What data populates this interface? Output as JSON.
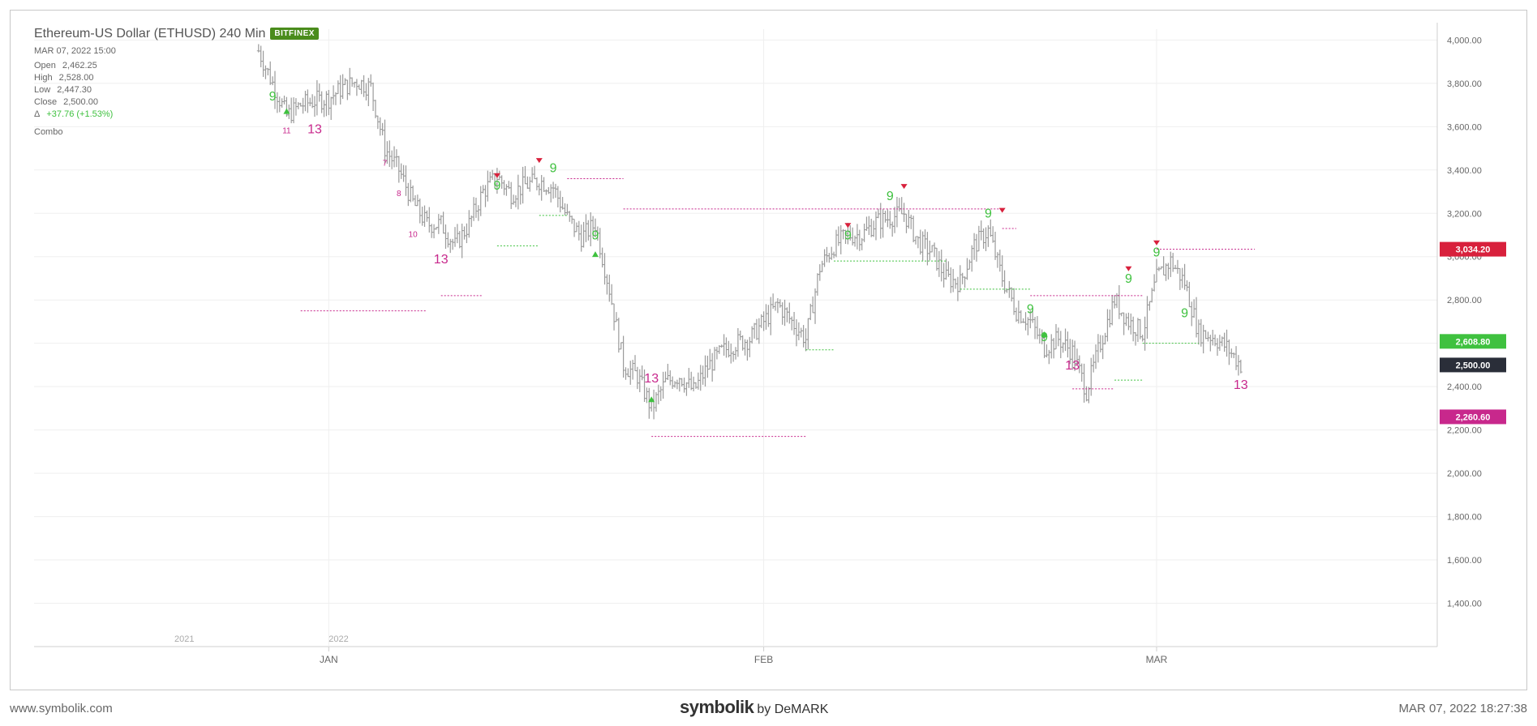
{
  "header": {
    "title": "Ethereum-US Dollar (ETHUSD) 240 Min",
    "exchange": "BITFINEX",
    "datetime": "MAR 07, 2022 15:00",
    "ohlc": [
      {
        "label": "Open",
        "value": "2,462.25"
      },
      {
        "label": "High",
        "value": "2,528.00"
      },
      {
        "label": "Low",
        "value": "2,447.30"
      },
      {
        "label": "Close",
        "value": "2,500.00"
      }
    ],
    "change_symbol": "Δ",
    "change": "+37.76 (+1.53%)",
    "indicator": "Combo"
  },
  "footer": {
    "website": "www.symbolik.com",
    "brand": "symbolik",
    "by": "by DeMARK",
    "timestamp": "MAR 07, 2022 18:27:38"
  },
  "colors": {
    "bar": "#9a9a9a",
    "green": "#3fc13f",
    "magenta": "#c8288c",
    "red": "#d8203c",
    "last": "#2a2e39",
    "grid": "#efefef",
    "axis_text": "#666666"
  },
  "chart_data": {
    "type": "ohlc",
    "symbol": "ETHUSD",
    "interval": "240 Min",
    "ylim": [
      1200,
      4050
    ],
    "y_ticks": [
      4000,
      3800,
      3600,
      3400,
      3200,
      3000,
      2800,
      2600,
      2400,
      2200,
      2000,
      1800,
      1600,
      1400
    ],
    "y_tick_labels": [
      "4,000.00",
      "3,800.00",
      "3,600.00",
      "3,400.00",
      "3,200.00",
      "3,000.00",
      "2,800.00",
      "2,600.00",
      "2,400.00",
      "2,200.00",
      "2,000.00",
      "1,800.00",
      "1,600.00",
      "1,400.00"
    ],
    "x_ticks": [
      {
        "label": "JAN",
        "date": "2022-01-01"
      },
      {
        "label": "FEB",
        "date": "2022-02-01"
      },
      {
        "label": "MAR",
        "date": "2022-03-01"
      }
    ],
    "year_labels": [
      {
        "label": "2021",
        "date": "2021-12-21"
      },
      {
        "label": "2022",
        "date": "2022-01-01"
      }
    ],
    "price_tags": [
      {
        "value": "3,034.20",
        "price": 3034.2,
        "color": "#d8203c"
      },
      {
        "value": "2,608.80",
        "price": 2608.8,
        "color": "#3fc13f"
      },
      {
        "value": "2,500.00",
        "price": 2500.0,
        "color": "#2a2e39"
      },
      {
        "value": "2,260.60",
        "price": 2260.6,
        "color": "#c8288c"
      }
    ],
    "price_path": [
      [
        "2021-12-27",
        3950
      ],
      [
        "2021-12-28",
        3800
      ],
      [
        "2021-12-29",
        3650
      ],
      [
        "2021-12-30",
        3700
      ],
      [
        "2021-12-31",
        3720
      ],
      [
        "2022-01-01",
        3730
      ],
      [
        "2022-01-02",
        3780
      ],
      [
        "2022-01-03",
        3810
      ],
      [
        "2022-01-04",
        3780
      ],
      [
        "2022-01-05",
        3500
      ],
      [
        "2022-01-06",
        3400
      ],
      [
        "2022-01-07",
        3250
      ],
      [
        "2022-01-08",
        3150
      ],
      [
        "2022-01-09",
        3150
      ],
      [
        "2022-01-10",
        3050
      ],
      [
        "2022-01-11",
        3150
      ],
      [
        "2022-01-12",
        3300
      ],
      [
        "2022-01-13",
        3370
      ],
      [
        "2022-01-14",
        3290
      ],
      [
        "2022-01-15",
        3330
      ],
      [
        "2022-01-16",
        3350
      ],
      [
        "2022-01-17",
        3320
      ],
      [
        "2022-01-18",
        3180
      ],
      [
        "2022-01-19",
        3090
      ],
      [
        "2022-01-20",
        3150
      ],
      [
        "2022-01-21",
        2850
      ],
      [
        "2022-01-22",
        2500
      ],
      [
        "2022-01-23",
        2450
      ],
      [
        "2022-01-24",
        2300
      ],
      [
        "2022-01-25",
        2420
      ],
      [
        "2022-01-26",
        2450
      ],
      [
        "2022-01-27",
        2380
      ],
      [
        "2022-01-28",
        2490
      ],
      [
        "2022-01-29",
        2560
      ],
      [
        "2022-01-30",
        2600
      ],
      [
        "2022-01-31",
        2620
      ],
      [
        "2022-02-01",
        2700
      ],
      [
        "2022-02-02",
        2780
      ],
      [
        "2022-02-03",
        2700
      ],
      [
        "2022-02-04",
        2620
      ],
      [
        "2022-02-05",
        2950
      ],
      [
        "2022-02-06",
        3050
      ],
      [
        "2022-02-07",
        3100
      ],
      [
        "2022-02-08",
        3100
      ],
      [
        "2022-02-09",
        3160
      ],
      [
        "2022-02-10",
        3180
      ],
      [
        "2022-02-11",
        3200
      ],
      [
        "2022-02-12",
        3070
      ],
      [
        "2022-02-13",
        3020
      ],
      [
        "2022-02-14",
        2900
      ],
      [
        "2022-02-15",
        2880
      ],
      [
        "2022-02-16",
        3050
      ],
      [
        "2022-02-17",
        3120
      ],
      [
        "2022-02-18",
        2900
      ],
      [
        "2022-02-19",
        2750
      ],
      [
        "2022-02-20",
        2700
      ],
      [
        "2022-02-21",
        2580
      ],
      [
        "2022-02-22",
        2620
      ],
      [
        "2022-02-23",
        2560
      ],
      [
        "2022-02-24",
        2380
      ],
      [
        "2022-02-25",
        2600
      ],
      [
        "2022-02-26",
        2800
      ],
      [
        "2022-02-27",
        2700
      ],
      [
        "2022-02-28",
        2650
      ],
      [
        "2022-03-01",
        2900
      ],
      [
        "2022-03-02",
        2980
      ],
      [
        "2022-03-03",
        2880
      ],
      [
        "2022-03-04",
        2650
      ],
      [
        "2022-03-05",
        2630
      ],
      [
        "2022-03-06",
        2580
      ],
      [
        "2022-03-07",
        2500
      ]
    ],
    "levels": [
      {
        "color": "#c8288c",
        "from": "2021-12-30",
        "to": "2022-01-08",
        "price": 2750
      },
      {
        "color": "#c8288c",
        "from": "2022-01-09",
        "to": "2022-01-12",
        "price": 2820
      },
      {
        "color": "#3fc13f",
        "from": "2022-01-13",
        "to": "2022-01-16",
        "price": 3050
      },
      {
        "color": "#3fc13f",
        "from": "2022-01-16",
        "to": "2022-01-18",
        "price": 3190
      },
      {
        "color": "#c8288c",
        "from": "2022-01-18",
        "to": "2022-01-22",
        "price": 3360
      },
      {
        "color": "#c8288c",
        "from": "2022-01-22",
        "to": "2022-02-10",
        "price": 3220
      },
      {
        "color": "#c8288c",
        "from": "2022-01-24",
        "to": "2022-02-04",
        "price": 2170
      },
      {
        "color": "#3fc13f",
        "from": "2022-02-04",
        "to": "2022-02-06",
        "price": 2570
      },
      {
        "color": "#3fc13f",
        "from": "2022-02-06",
        "to": "2022-02-14",
        "price": 2980
      },
      {
        "color": "#c8288c",
        "from": "2022-02-10",
        "to": "2022-02-18",
        "price": 3220
      },
      {
        "color": "#3fc13f",
        "from": "2022-02-15",
        "to": "2022-02-20",
        "price": 2850
      },
      {
        "color": "#c8288c",
        "from": "2022-02-18",
        "to": "2022-02-19",
        "price": 3130
      },
      {
        "color": "#c8288c",
        "from": "2022-02-20",
        "to": "2022-02-28",
        "price": 2820
      },
      {
        "color": "#c8288c",
        "from": "2022-02-23",
        "to": "2022-02-26",
        "price": 2390
      },
      {
        "color": "#3fc13f",
        "from": "2022-02-26",
        "to": "2022-02-28",
        "price": 2430
      },
      {
        "color": "#3fc13f",
        "from": "2022-02-28",
        "to": "2022-03-04",
        "price": 2600
      },
      {
        "color": "#c8288c",
        "from": "2022-03-01",
        "to": "2022-03-08",
        "price": 3034
      }
    ],
    "annotations": [
      {
        "text": "9",
        "date": "2021-12-28",
        "price": 3720,
        "color": "#3fc13f",
        "big": true
      },
      {
        "text": "13",
        "date": "2021-12-31",
        "price": 3570,
        "color": "#c8288c",
        "big": true
      },
      {
        "text": "11",
        "date": "2021-12-29",
        "price": 3570,
        "color": "#c8288c",
        "big": false
      },
      {
        "text": "7",
        "date": "2022-01-05",
        "price": 3420,
        "color": "#c8288c",
        "big": false
      },
      {
        "text": "8",
        "date": "2022-01-06",
        "price": 3280,
        "color": "#c8288c",
        "big": false
      },
      {
        "text": "10",
        "date": "2022-01-07",
        "price": 3090,
        "color": "#c8288c",
        "big": false
      },
      {
        "text": "13",
        "date": "2022-01-09",
        "price": 2970,
        "color": "#c8288c",
        "big": true
      },
      {
        "text": "9",
        "date": "2022-01-13",
        "price": 3310,
        "color": "#3fc13f",
        "big": true
      },
      {
        "text": "9",
        "date": "2022-01-17",
        "price": 3390,
        "color": "#3fc13f",
        "big": true
      },
      {
        "text": "9",
        "date": "2022-01-20",
        "price": 3080,
        "color": "#3fc13f",
        "big": true
      },
      {
        "text": "13",
        "date": "2022-01-24",
        "price": 2420,
        "color": "#c8288c",
        "big": true
      },
      {
        "text": "9",
        "date": "2022-02-07",
        "price": 3080,
        "color": "#3fc13f",
        "big": true
      },
      {
        "text": "9",
        "date": "2022-02-10",
        "price": 3260,
        "color": "#3fc13f",
        "big": true
      },
      {
        "text": "9",
        "date": "2022-02-17",
        "price": 3180,
        "color": "#3fc13f",
        "big": true
      },
      {
        "text": "9",
        "date": "2022-02-20",
        "price": 2740,
        "color": "#3fc13f",
        "big": true
      },
      {
        "text": "9",
        "date": "2022-02-21",
        "price": 2610,
        "color": "#3fc13f",
        "big": true
      },
      {
        "text": "13",
        "date": "2022-02-23",
        "price": 2480,
        "color": "#c8288c",
        "big": true
      },
      {
        "text": "9",
        "date": "2022-02-27",
        "price": 2880,
        "color": "#3fc13f",
        "big": true
      },
      {
        "text": "9",
        "date": "2022-03-01",
        "price": 3000,
        "color": "#3fc13f",
        "big": true
      },
      {
        "text": "9",
        "date": "2022-03-03",
        "price": 2720,
        "color": "#3fc13f",
        "big": true
      },
      {
        "text": "13",
        "date": "2022-03-07",
        "price": 2390,
        "color": "#c8288c",
        "big": true
      }
    ],
    "arrows": [
      {
        "dir": "down",
        "date": "2022-01-13",
        "price": 3370,
        "color": "#d8203c"
      },
      {
        "dir": "down",
        "date": "2022-01-16",
        "price": 3440,
        "color": "#d8203c"
      },
      {
        "dir": "down",
        "date": "2022-02-07",
        "price": 3140,
        "color": "#d8203c"
      },
      {
        "dir": "down",
        "date": "2022-02-11",
        "price": 3320,
        "color": "#d8203c"
      },
      {
        "dir": "down",
        "date": "2022-02-18",
        "price": 3210,
        "color": "#d8203c"
      },
      {
        "dir": "down",
        "date": "2022-02-27",
        "price": 2940,
        "color": "#d8203c"
      },
      {
        "dir": "down",
        "date": "2022-03-01",
        "price": 3060,
        "color": "#d8203c"
      },
      {
        "dir": "up",
        "date": "2021-12-29",
        "price": 3670,
        "color": "#3fc13f"
      },
      {
        "dir": "up",
        "date": "2022-01-20",
        "price": 3010,
        "color": "#3fc13f"
      },
      {
        "dir": "up",
        "date": "2022-01-24",
        "price": 2340,
        "color": "#3fc13f"
      },
      {
        "dir": "up",
        "date": "2022-02-21",
        "price": 2640,
        "color": "#3fc13f"
      }
    ]
  }
}
